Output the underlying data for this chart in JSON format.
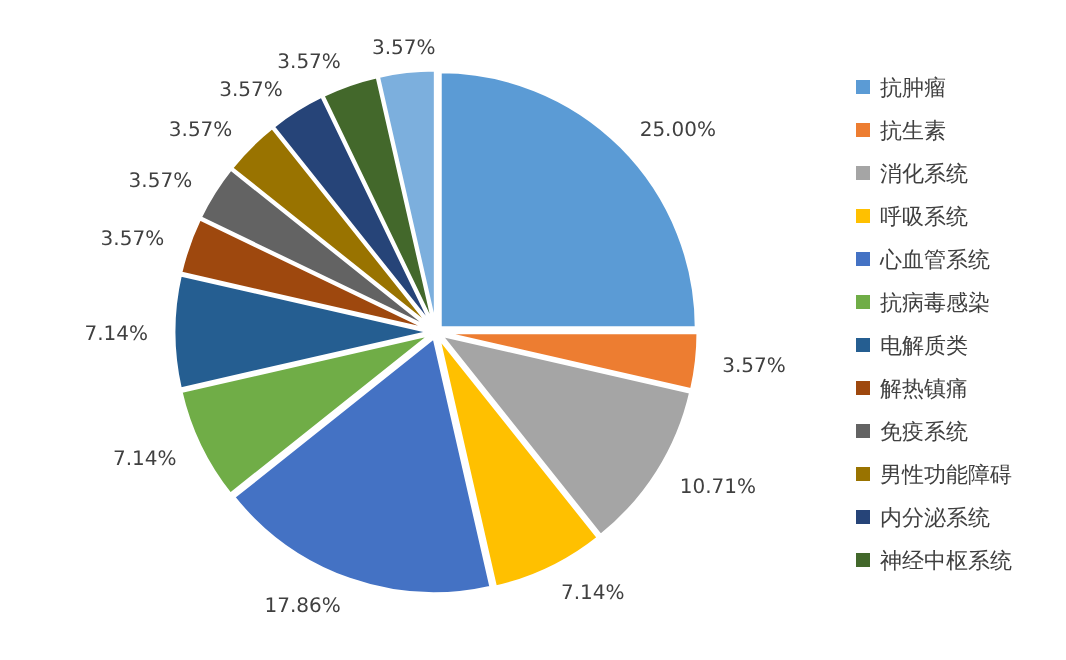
{
  "chart_data": {
    "type": "pie",
    "categories": [
      "抗肿瘤",
      "抗生素",
      "消化系统",
      "呼吸系统",
      "心血管系统",
      "抗病毒感染",
      "电解质类",
      "解热镇痛",
      "免疫系统",
      "男性功能障碍",
      "内分泌系统",
      "神经中枢系统",
      null
    ],
    "values": [
      25.0,
      3.57,
      10.71,
      7.14,
      17.86,
      7.14,
      7.14,
      3.57,
      3.57,
      3.57,
      3.57,
      3.57,
      3.57
    ],
    "value_labels": [
      "25.00%",
      "3.57%",
      "10.71%",
      "7.14%",
      "17.86%",
      "7.14%",
      "7.14%",
      "3.57%",
      "3.57%",
      "3.57%",
      "3.57%",
      "3.57%",
      "3.57%"
    ],
    "colors": [
      "#5b9bd5",
      "#ed7d31",
      "#a5a5a5",
      "#ffc000",
      "#4472c4",
      "#70ad47",
      "#255e91",
      "#9e480e",
      "#636363",
      "#997300",
      "#264478",
      "#43682b",
      "#7cafdd"
    ],
    "legend": "right"
  }
}
